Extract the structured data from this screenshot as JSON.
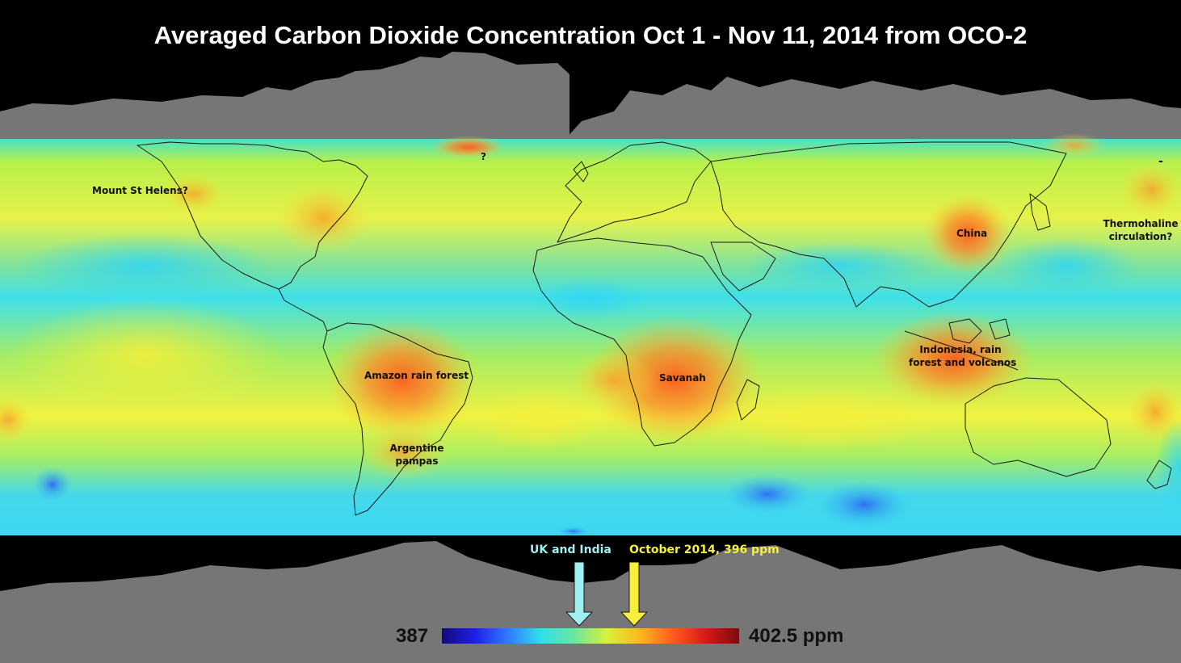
{
  "title": "Averaged Carbon Dioxide Concentration  Oct 1 - Nov 11, 2014  from OCO-2",
  "annotations": [
    {
      "id": "mount-st-helens",
      "text": "Mount St Helens?"
    },
    {
      "id": "question-mark",
      "text": "?"
    },
    {
      "id": "china",
      "text": "China"
    },
    {
      "id": "thermohaline",
      "line1": "Thermohaline",
      "line2": "circulation?"
    },
    {
      "id": "amazon",
      "text": "Amazon rain forest"
    },
    {
      "id": "savanah",
      "text": "Savanah"
    },
    {
      "id": "indonesia",
      "line1": "Indonesia, rain",
      "line2": "forest and volcanos"
    },
    {
      "id": "argentine",
      "line1": "Argentine",
      "line2": "pampas"
    },
    {
      "id": "dash",
      "text": "-"
    }
  ],
  "pointers": [
    {
      "label": "UK and India",
      "color": "#9ff0f0"
    },
    {
      "label": "October 2014, 396 ppm",
      "color": "#f5f03a"
    }
  ],
  "scale": {
    "min_label": "387",
    "max_label": "402.5 ppm",
    "min": 387,
    "max": 402.5,
    "colors": [
      "#140a7a",
      "#1f1fe6",
      "#2f7bff",
      "#2fe0ea",
      "#6ae6a0",
      "#d7f23a",
      "#fbb71e",
      "#ff5a1e",
      "#d81717",
      "#7a0d0d"
    ]
  },
  "land_color": "#767676",
  "background_color": "#000000"
}
